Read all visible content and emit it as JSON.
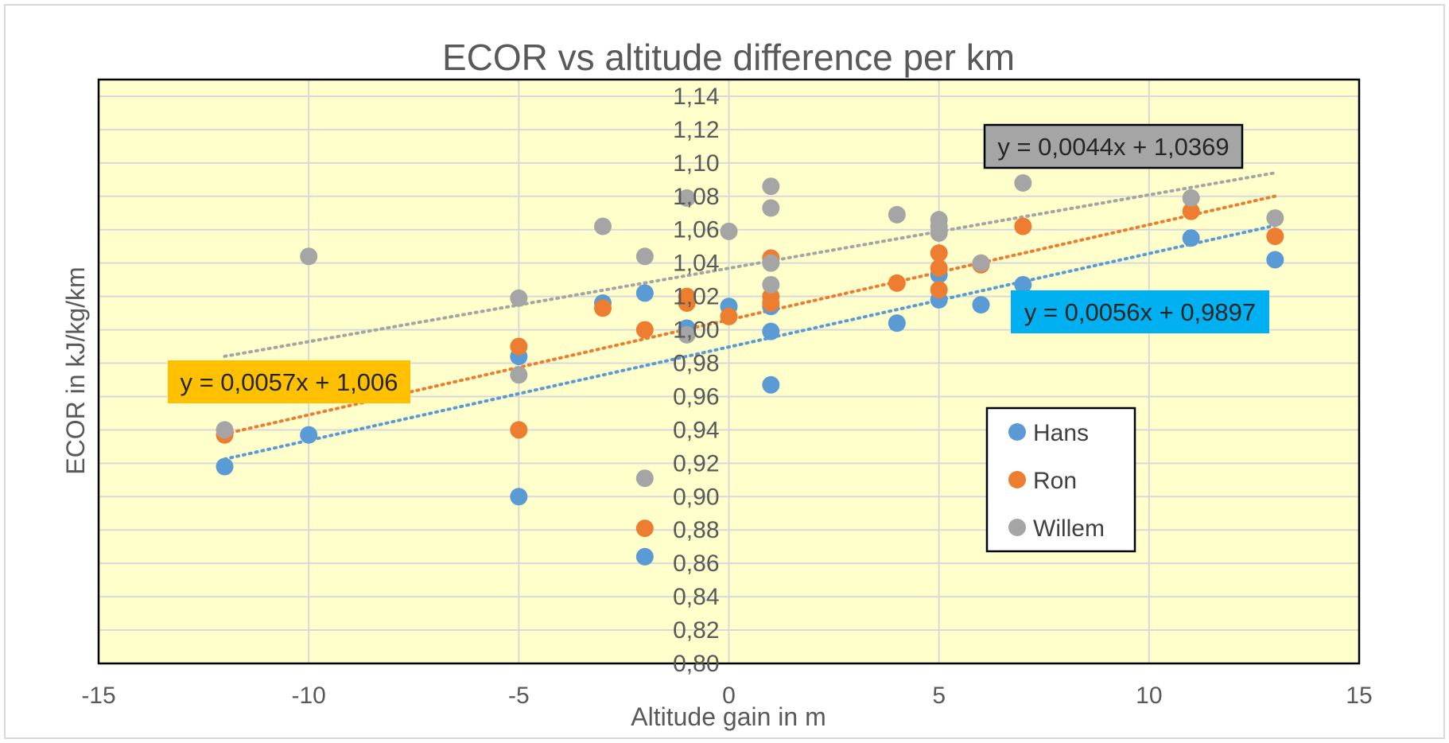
{
  "chart_data": {
    "type": "scatter",
    "title": "ECOR vs altitude difference per km",
    "xlabel": "Altitude gain in m",
    "ylabel": "ECOR in kJ/kg/km",
    "xlim": [
      -15,
      15
    ],
    "ylim": [
      0.8,
      1.15
    ],
    "x_ticks": [
      -15,
      -10,
      -5,
      0,
      5,
      10,
      15
    ],
    "x_tick_labels": [
      "-15",
      "-10",
      "-5",
      "0",
      "5",
      "10",
      "15"
    ],
    "y_ticks": [
      0.8,
      0.82,
      0.84,
      0.86,
      0.88,
      0.9,
      0.92,
      0.94,
      0.96,
      0.98,
      1.0,
      1.02,
      1.04,
      1.06,
      1.08,
      1.1,
      1.12,
      1.14
    ],
    "y_tick_labels": [
      "0,80",
      "0,82",
      "0,84",
      "0,86",
      "0,88",
      "0,90",
      "0,92",
      "0,94",
      "0,96",
      "0,98",
      "1,00",
      "1,02",
      "1,04",
      "1,06",
      "1,08",
      "1,10",
      "1,12",
      "1,14"
    ],
    "grid": true,
    "plot_background": "#ffffcc",
    "legend_position": "right-lower",
    "series": [
      {
        "name": "Hans",
        "color": "#5b9bd5",
        "points": [
          [
            -12,
            0.918
          ],
          [
            -10,
            0.937
          ],
          [
            -5,
            0.9
          ],
          [
            -5,
            0.984
          ],
          [
            -3,
            1.016
          ],
          [
            -2,
            0.864
          ],
          [
            -2,
            1.022
          ],
          [
            -1,
            1.001
          ],
          [
            0,
            1.014
          ],
          [
            1,
            0.967
          ],
          [
            1,
            0.999
          ],
          [
            1,
            1.014
          ],
          [
            4,
            1.004
          ],
          [
            5,
            1.018
          ],
          [
            5,
            1.033
          ],
          [
            6,
            1.015
          ],
          [
            7,
            1.027
          ],
          [
            11,
            1.055
          ],
          [
            13,
            1.042
          ]
        ],
        "trendline": {
          "slope": 0.0056,
          "intercept": 0.9897,
          "x_range": [
            -12,
            13
          ],
          "label": "y = 0,0056x + 0,9897",
          "label_bg": "#00b0f0"
        }
      },
      {
        "name": "Ron",
        "color": "#ed7d31",
        "points": [
          [
            -12,
            0.937
          ],
          [
            -5,
            0.94
          ],
          [
            -5,
            0.99
          ],
          [
            -3,
            1.013
          ],
          [
            -2,
            0.881
          ],
          [
            -2,
            1.0
          ],
          [
            -1,
            1.016
          ],
          [
            -1,
            1.02
          ],
          [
            0,
            1.008
          ],
          [
            1,
            1.016
          ],
          [
            1,
            1.02
          ],
          [
            1,
            1.043
          ],
          [
            4,
            1.028
          ],
          [
            5,
            1.024
          ],
          [
            5,
            1.037
          ],
          [
            5,
            1.046
          ],
          [
            6,
            1.039
          ],
          [
            7,
            1.062
          ],
          [
            11,
            1.071
          ],
          [
            13,
            1.056
          ]
        ],
        "trendline": {
          "slope": 0.0057,
          "intercept": 1.006,
          "x_range": [
            -12,
            13
          ],
          "label": "y = 0,0057x + 1,006",
          "label_bg": "#ffc000"
        }
      },
      {
        "name": "Willem",
        "color": "#a5a5a5",
        "points": [
          [
            -12,
            0.94
          ],
          [
            -10,
            1.044
          ],
          [
            -5,
            0.973
          ],
          [
            -5,
            1.019
          ],
          [
            -3,
            1.062
          ],
          [
            -2,
            0.911
          ],
          [
            -2,
            1.044
          ],
          [
            -1,
            0.997
          ],
          [
            -1,
            1.079
          ],
          [
            0,
            1.059
          ],
          [
            1,
            1.027
          ],
          [
            1,
            1.04
          ],
          [
            1,
            1.073
          ],
          [
            1,
            1.086
          ],
          [
            4,
            1.069
          ],
          [
            5,
            1.058
          ],
          [
            5,
            1.062
          ],
          [
            5,
            1.066
          ],
          [
            6,
            1.04
          ],
          [
            7,
            1.088
          ],
          [
            11,
            1.079
          ],
          [
            13,
            1.067
          ]
        ],
        "trendline": {
          "slope": 0.0044,
          "intercept": 1.0369,
          "x_range": [
            -12,
            13
          ],
          "label": "y = 0,0044x + 1,0369",
          "label_bg": "#a5a5a5"
        }
      }
    ]
  }
}
